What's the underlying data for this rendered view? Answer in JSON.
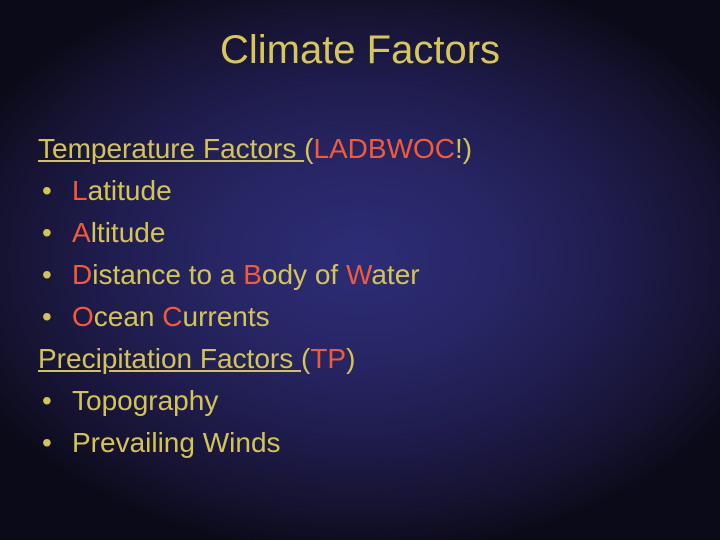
{
  "colors": {
    "title": "#d7c75a",
    "body": "#d4c454",
    "highlight": "#f25a3a",
    "exclaim": "#d4c454"
  },
  "fontsize": {
    "title": 40,
    "body": 28
  },
  "title": "Climate Factors",
  "sections": [
    {
      "heading_pre": "Temperature Factors ",
      "heading_paren_open": "(",
      "heading_acronym": "LADBWOC",
      "heading_exclaim": "!",
      "heading_paren_close": ")",
      "bullets": [
        [
          {
            "t": "L",
            "hl": true
          },
          {
            "t": "atitude",
            "hl": false
          }
        ],
        [
          {
            "t": "A",
            "hl": true
          },
          {
            "t": "ltitude",
            "hl": false
          }
        ],
        [
          {
            "t": "D",
            "hl": true
          },
          {
            "t": "istance to a ",
            "hl": false
          },
          {
            "t": "B",
            "hl": true
          },
          {
            "t": "ody of ",
            "hl": false
          },
          {
            "t": "W",
            "hl": true
          },
          {
            "t": "ater",
            "hl": false
          }
        ],
        [
          {
            "t": "O",
            "hl": true
          },
          {
            "t": "cean ",
            "hl": false
          },
          {
            "t": "C",
            "hl": true
          },
          {
            "t": "urrents",
            "hl": false
          }
        ]
      ]
    },
    {
      "heading_pre": "Precipitation Factors ",
      "heading_paren_open": "(",
      "heading_acronym": "TP",
      "heading_exclaim": "",
      "heading_paren_close": ")",
      "bullets": [
        [
          {
            "t": "Topography",
            "hl": false
          }
        ],
        [
          {
            "t": "Prevailing Winds",
            "hl": false
          }
        ]
      ]
    }
  ]
}
